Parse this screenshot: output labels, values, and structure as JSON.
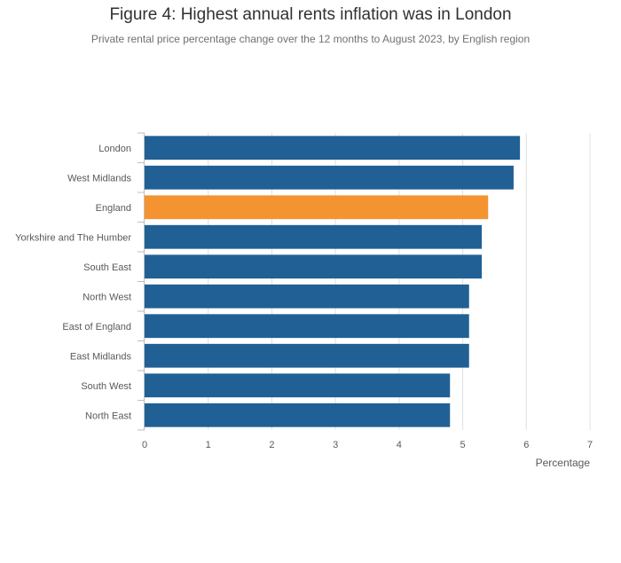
{
  "chart_data": {
    "type": "bar",
    "orientation": "horizontal",
    "title": "Figure 4: Highest annual rents inflation was in London",
    "subtitle": "Private rental price percentage change over the 12 months to August 2023, by English region",
    "xlabel": "Percentage",
    "ylabel": "",
    "xlim": [
      0,
      7
    ],
    "xticks": [
      0,
      1,
      2,
      3,
      4,
      5,
      6,
      7
    ],
    "grid": true,
    "legend": "none",
    "categories": [
      "London",
      "West Midlands",
      "England",
      "Yorkshire and The Humber",
      "South East",
      "North West",
      "East of England",
      "East Midlands",
      "South West",
      "North East"
    ],
    "values": [
      5.9,
      5.8,
      5.4,
      5.3,
      5.3,
      5.1,
      5.1,
      5.1,
      4.8,
      4.8
    ],
    "highlight_category": "England",
    "colors": {
      "bar": "#206095",
      "highlight": "#F39431",
      "grid": "#E0E0E0",
      "axis": "#BEBEBE"
    }
  }
}
